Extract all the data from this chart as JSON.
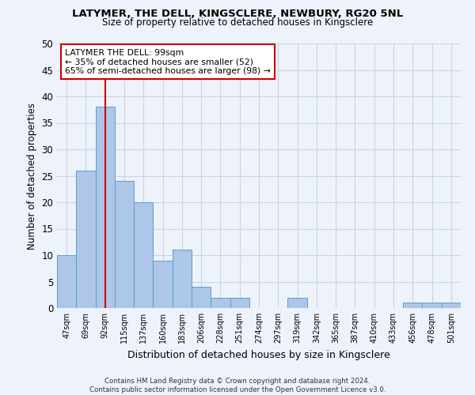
{
  "title1": "LATYMER, THE DELL, KINGSCLERE, NEWBURY, RG20 5NL",
  "title2": "Size of property relative to detached houses in Kingsclere",
  "xlabel": "Distribution of detached houses by size in Kingsclere",
  "ylabel": "Number of detached properties",
  "footnote": "Contains HM Land Registry data © Crown copyright and database right 2024.\nContains public sector information licensed under the Open Government Licence v3.0.",
  "bin_labels": [
    "47sqm",
    "69sqm",
    "92sqm",
    "115sqm",
    "137sqm",
    "160sqm",
    "183sqm",
    "206sqm",
    "228sqm",
    "251sqm",
    "274sqm",
    "297sqm",
    "319sqm",
    "342sqm",
    "365sqm",
    "387sqm",
    "410sqm",
    "433sqm",
    "456sqm",
    "478sqm",
    "501sqm"
  ],
  "bar_heights": [
    10,
    26,
    38,
    24,
    20,
    9,
    11,
    4,
    2,
    2,
    0,
    0,
    2,
    0,
    0,
    0,
    0,
    0,
    1,
    1,
    1
  ],
  "bar_color": "#aec6e8",
  "bar_edge_color": "#5a9fd4",
  "grid_color": "#c8d4e8",
  "vline_x_idx": 2,
  "vline_color": "#cc0000",
  "annotation_text": "LATYMER THE DELL: 99sqm\n← 35% of detached houses are smaller (52)\n65% of semi-detached houses are larger (98) →",
  "annotation_box_color": "#ffffff",
  "annotation_border_color": "#cc0000",
  "ylim": [
    0,
    50
  ],
  "yticks": [
    0,
    5,
    10,
    15,
    20,
    25,
    30,
    35,
    40,
    45,
    50
  ],
  "background_color": "#eef2fa",
  "title1_fontsize": 9.5,
  "title2_fontsize": 8.5
}
